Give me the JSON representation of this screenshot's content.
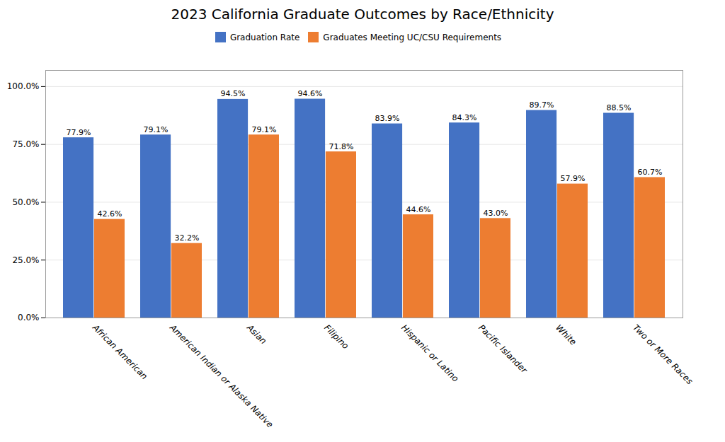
{
  "chart_data": {
    "type": "bar",
    "title": "2023 California Graduate Outcomes by Race/Ethnicity",
    "categories": [
      "African American",
      "American Indian or Alaska Native",
      "Asian",
      "Filipino",
      "Hispanic or Latino",
      "Pacific Islander",
      "White",
      "Two or More Races"
    ],
    "series": [
      {
        "name": "Graduation Rate",
        "color": "#4472C4",
        "values": [
          77.9,
          79.1,
          94.5,
          94.6,
          83.9,
          84.3,
          89.7,
          88.5
        ],
        "value_labels": [
          "77.9%",
          "79.1%",
          "94.5%",
          "94.6%",
          "83.9%",
          "84.3%",
          "89.7%",
          "88.5%"
        ]
      },
      {
        "name": "Graduates Meeting UC/CSU Requirements",
        "color": "#ED7D31",
        "values": [
          42.6,
          32.2,
          79.1,
          71.8,
          44.6,
          43.0,
          57.9,
          60.7
        ],
        "value_labels": [
          "42.6%",
          "32.2%",
          "79.1%",
          "71.8%",
          "44.6%",
          "43.0%",
          "57.9%",
          "60.7%"
        ]
      }
    ],
    "ylim": [
      0,
      107
    ],
    "yticks": [
      {
        "value": 0,
        "label": "0.0%"
      },
      {
        "value": 25,
        "label": "25.0%"
      },
      {
        "value": 50,
        "label": "50.0%"
      },
      {
        "value": 75,
        "label": "75.0%"
      },
      {
        "value": 100,
        "label": "100.0%"
      }
    ],
    "grid": true,
    "legend": "top",
    "data_labels": true
  }
}
